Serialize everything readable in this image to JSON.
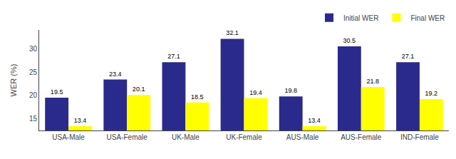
{
  "chart_data": {
    "type": "bar",
    "categories": [
      "USA-Male",
      "USA-Female",
      "UK-Male",
      "UK-Female",
      "AUS-Male",
      "AUS-Female",
      "IND-Female"
    ],
    "series": [
      {
        "name": "Initial WER",
        "color": "#2a2a8c",
        "values": [
          19.5,
          23.4,
          27.1,
          32.1,
          19.8,
          30.5,
          27.1
        ]
      },
      {
        "name": "Final WER",
        "color": "#ffff00",
        "values": [
          13.4,
          20.1,
          18.5,
          19.4,
          13.4,
          21.8,
          19.2
        ]
      }
    ],
    "ylabel": "WER (%)",
    "ylim": [
      12.5,
      34.0
    ],
    "yticks": [
      15,
      20,
      25,
      30
    ],
    "grid": false,
    "legend": "upper right",
    "data_labels": true
  }
}
